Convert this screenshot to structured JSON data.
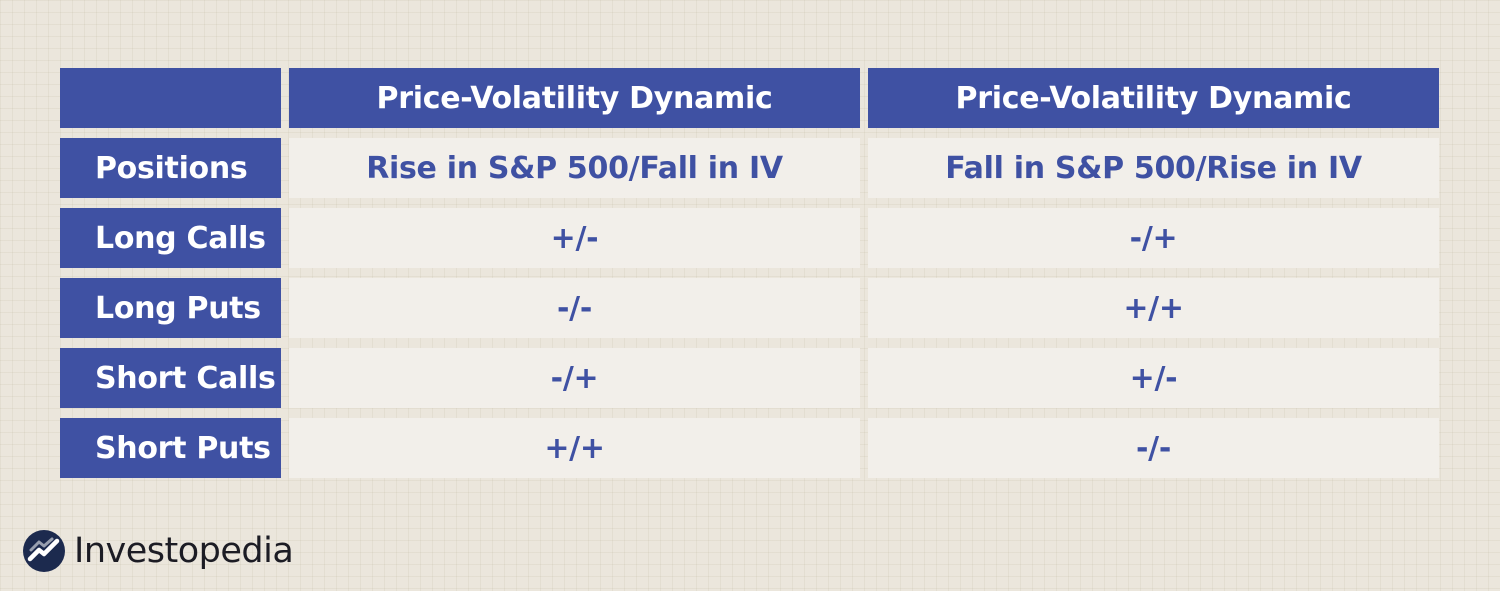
{
  "table": {
    "headers": [
      "Price-Volatility Dynamic",
      "Price-Volatility Dynamic"
    ],
    "row_label_header": "Positions",
    "sub_headers": [
      "Rise in S&P 500/Fall in IV",
      "Fall in S&P 500/Rise in IV"
    ],
    "rows": [
      {
        "label": "Long Calls",
        "values": [
          "+/-",
          "-/+"
        ]
      },
      {
        "label": "Long Puts",
        "values": [
          "-/-",
          "+/+"
        ]
      },
      {
        "label": "Short Calls",
        "values": [
          "-/+",
          "+/-"
        ]
      },
      {
        "label": "Short Puts",
        "values": [
          "+/+",
          "-/-"
        ]
      }
    ]
  },
  "brand": {
    "name": "Investopedia",
    "icon": "investopedia-logo-icon"
  },
  "colors": {
    "header_bg": "#3f51a3",
    "header_text": "#ffffff",
    "cell_bg": "#f2efea",
    "cell_text": "#3f51a3",
    "page_bg": "#ebe6dc"
  }
}
